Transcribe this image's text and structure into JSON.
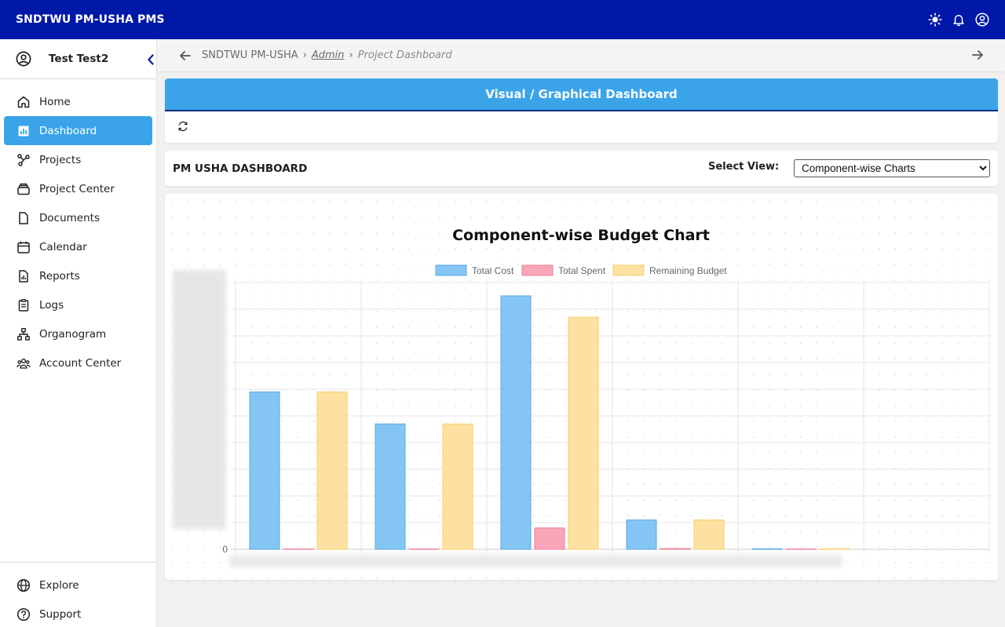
{
  "app": {
    "title": "SNDTWU PM-USHA PMS"
  },
  "topbar": {
    "icons": [
      "sun-icon",
      "bell-icon",
      "user-circle-icon"
    ]
  },
  "user": {
    "name": "Test Test2"
  },
  "sidebar": {
    "items": [
      {
        "label": "Home",
        "icon": "home-icon",
        "active": false
      },
      {
        "label": "Dashboard",
        "icon": "dashboard-icon",
        "active": true
      },
      {
        "label": "Projects",
        "icon": "projects-icon",
        "active": false
      },
      {
        "label": "Project Center",
        "icon": "project-center-icon",
        "active": false
      },
      {
        "label": "Documents",
        "icon": "document-icon",
        "active": false
      },
      {
        "label": "Calendar",
        "icon": "calendar-icon",
        "active": false
      },
      {
        "label": "Reports",
        "icon": "reports-icon",
        "active": false
      },
      {
        "label": "Logs",
        "icon": "logs-icon",
        "active": false
      },
      {
        "label": "Organogram",
        "icon": "organogram-icon",
        "active": false
      },
      {
        "label": "Account Center",
        "icon": "account-center-icon",
        "active": false
      }
    ],
    "bottom": [
      {
        "label": "Explore",
        "icon": "globe-icon"
      },
      {
        "label": "Support",
        "icon": "help-icon"
      }
    ]
  },
  "breadcrumb": {
    "root": "SNDTWU PM-USHA",
    "link": "Admin",
    "current": "Project Dashboard",
    "separator": "›"
  },
  "banner": {
    "title": "Visual / Graphical Dashboard"
  },
  "view": {
    "dashboard_title": "PM USHA DASHBOARD",
    "select_label": "Select View:",
    "selected": "Component-wise Charts"
  },
  "colors": {
    "topbar": "#0018a8",
    "accent": "#3ba4e9",
    "total_cost": "#84c5f4",
    "total_spent": "#f8a6b8",
    "remaining_budget": "#fde1a0"
  },
  "chart_data": {
    "type": "bar",
    "title": "Component-wise Budget Chart",
    "y_zero_label": "0",
    "series": [
      {
        "name": "Total Cost",
        "values": [
          0.59,
          0.47,
          0.95,
          0.11,
          0.002
        ]
      },
      {
        "name": "Total Spent",
        "values": [
          0,
          0,
          0.08,
          0.003,
          0
        ]
      },
      {
        "name": "Remaining Budget",
        "values": [
          0.59,
          0.47,
          0.87,
          0.11,
          0.002
        ]
      }
    ],
    "ylim": [
      0,
      1
    ],
    "grid": true,
    "legend": "top"
  }
}
